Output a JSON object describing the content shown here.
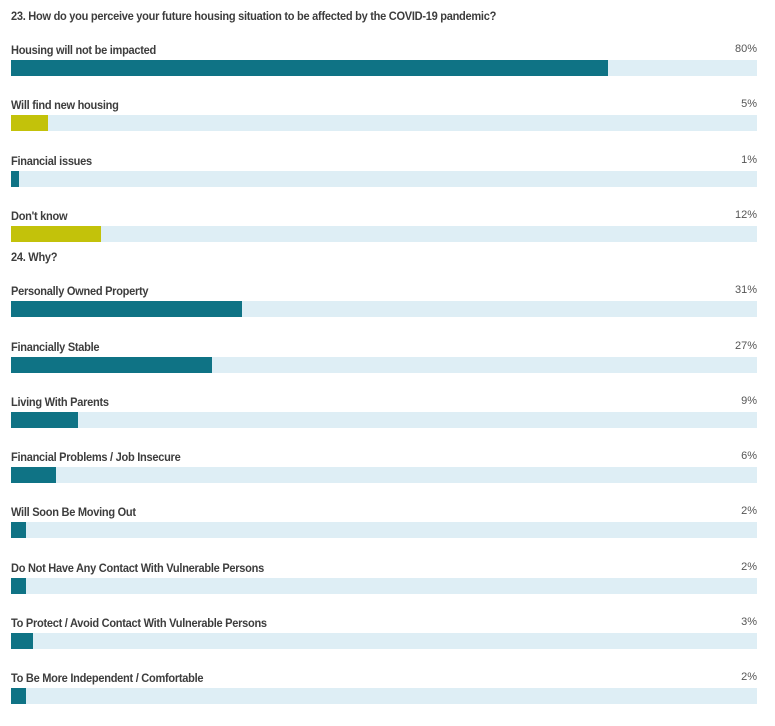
{
  "colors": {
    "primary": "#0f7385",
    "accent": "#c3c20a",
    "track": "#deeef5",
    "text": "#3d3d3d"
  },
  "chart_data": [
    {
      "type": "bar",
      "orientation": "horizontal",
      "title": "23. How do you perceive your future housing situation to be affected by the COVID-19 pandemic?",
      "unit": "%",
      "xlim": [
        0,
        100
      ],
      "categories": [
        "Housing will not be impacted",
        "Will find new housing",
        "Financial issues",
        "Don't know"
      ],
      "values": [
        80,
        5,
        1,
        12
      ],
      "value_labels": [
        "80%",
        "5%",
        "1%",
        "12%"
      ],
      "bar_colors": [
        "#0f7385",
        "#c3c20a",
        "#0f7385",
        "#c3c20a"
      ]
    },
    {
      "type": "bar",
      "orientation": "horizontal",
      "title": "24. Why?",
      "unit": "%",
      "xlim": [
        0,
        100
      ],
      "categories": [
        "Personally Owned Property",
        "Financially Stable",
        "Living With Parents",
        "Financial Problems / Job Insecure",
        "Will Soon Be Moving Out",
        "Do Not Have Any Contact With Vulnerable Persons",
        "To Protect / Avoid Contact With Vulnerable Persons",
        "To Be More Independent / Comfortable"
      ],
      "values": [
        31,
        27,
        9,
        6,
        2,
        2,
        3,
        2
      ],
      "value_labels": [
        "31%",
        "27%",
        "9%",
        "6%",
        "2%",
        "2%",
        "3%",
        "2%"
      ],
      "bar_colors": [
        "#0f7385",
        "#0f7385",
        "#0f7385",
        "#0f7385",
        "#0f7385",
        "#0f7385",
        "#0f7385",
        "#0f7385"
      ]
    }
  ]
}
